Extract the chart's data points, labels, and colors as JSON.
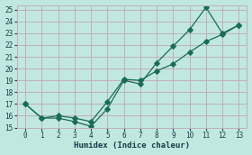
{
  "xlabel": "Humidex (Indice chaleur)",
  "ylabel": "",
  "background_color": "#c0e8e0",
  "grid_color": "#c0b0b8",
  "line_color": "#1a6b5a",
  "xlim": [
    -0.5,
    13.5
  ],
  "ylim": [
    15,
    25.4
  ],
  "xticks": [
    0,
    1,
    2,
    3,
    4,
    5,
    6,
    7,
    8,
    9,
    10,
    11,
    12,
    13
  ],
  "yticks": [
    15,
    16,
    17,
    18,
    19,
    20,
    21,
    22,
    23,
    24,
    25
  ],
  "line1_x": [
    0,
    1,
    2,
    3,
    4,
    5,
    6,
    7,
    8,
    9,
    10,
    11,
    12,
    13
  ],
  "line1_y": [
    17.0,
    15.8,
    15.8,
    15.5,
    15.1,
    16.6,
    19.0,
    18.7,
    20.5,
    21.9,
    23.3,
    25.2,
    23.0,
    23.7
  ],
  "line2_x": [
    0,
    1,
    2,
    3,
    4,
    5,
    6,
    7,
    8,
    9,
    10,
    11,
    12,
    13
  ],
  "line2_y": [
    17.0,
    15.8,
    16.0,
    15.8,
    15.5,
    17.2,
    19.1,
    19.0,
    19.8,
    20.4,
    21.4,
    22.3,
    22.9,
    23.7
  ],
  "font_color": "#1a3a4a",
  "marker": "D",
  "markersize": 2.8,
  "linewidth": 0.9
}
